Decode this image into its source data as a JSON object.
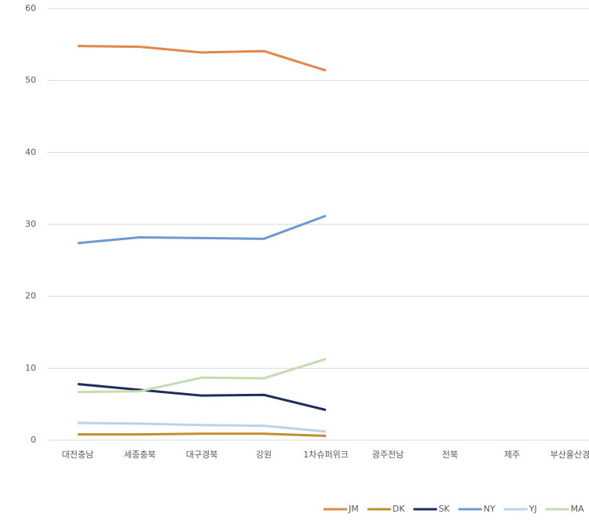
{
  "chart_data": {
    "type": "line",
    "categories": [
      "대전충남",
      "세종충북",
      "대구경북",
      "강원",
      "1차슈퍼위크",
      "광주전남",
      "전북",
      "제주",
      "부산울산경남"
    ],
    "series": [
      {
        "name": "JM",
        "color": "#e0874a",
        "values": [
          54.8,
          54.7,
          53.9,
          54.1,
          51.4,
          null,
          null,
          null,
          null
        ]
      },
      {
        "name": "DK",
        "color": "#bf9030",
        "values": [
          0.8,
          0.8,
          0.9,
          0.9,
          0.6,
          null,
          null,
          null,
          null
        ]
      },
      {
        "name": "SK",
        "color": "#1f2d5c",
        "values": [
          7.8,
          7.0,
          6.2,
          6.3,
          4.2,
          null,
          null,
          null,
          null
        ]
      },
      {
        "name": "NY",
        "color": "#6b9bd1",
        "values": [
          27.4,
          28.2,
          28.1,
          28.0,
          31.2,
          null,
          null,
          null,
          null
        ]
      },
      {
        "name": "YJ",
        "color": "#b9d3ea",
        "values": [
          2.4,
          2.3,
          2.1,
          2.0,
          1.2,
          null,
          null,
          null,
          null
        ]
      },
      {
        "name": "MA",
        "color": "#c5dbb0",
        "values": [
          6.7,
          6.8,
          8.7,
          8.6,
          11.3,
          null,
          null,
          null,
          null
        ]
      }
    ],
    "ylim": [
      0,
      60
    ],
    "yticks": [
      0,
      10,
      20,
      30,
      40,
      50,
      60
    ],
    "grid": true,
    "legend": "bottom-right"
  }
}
